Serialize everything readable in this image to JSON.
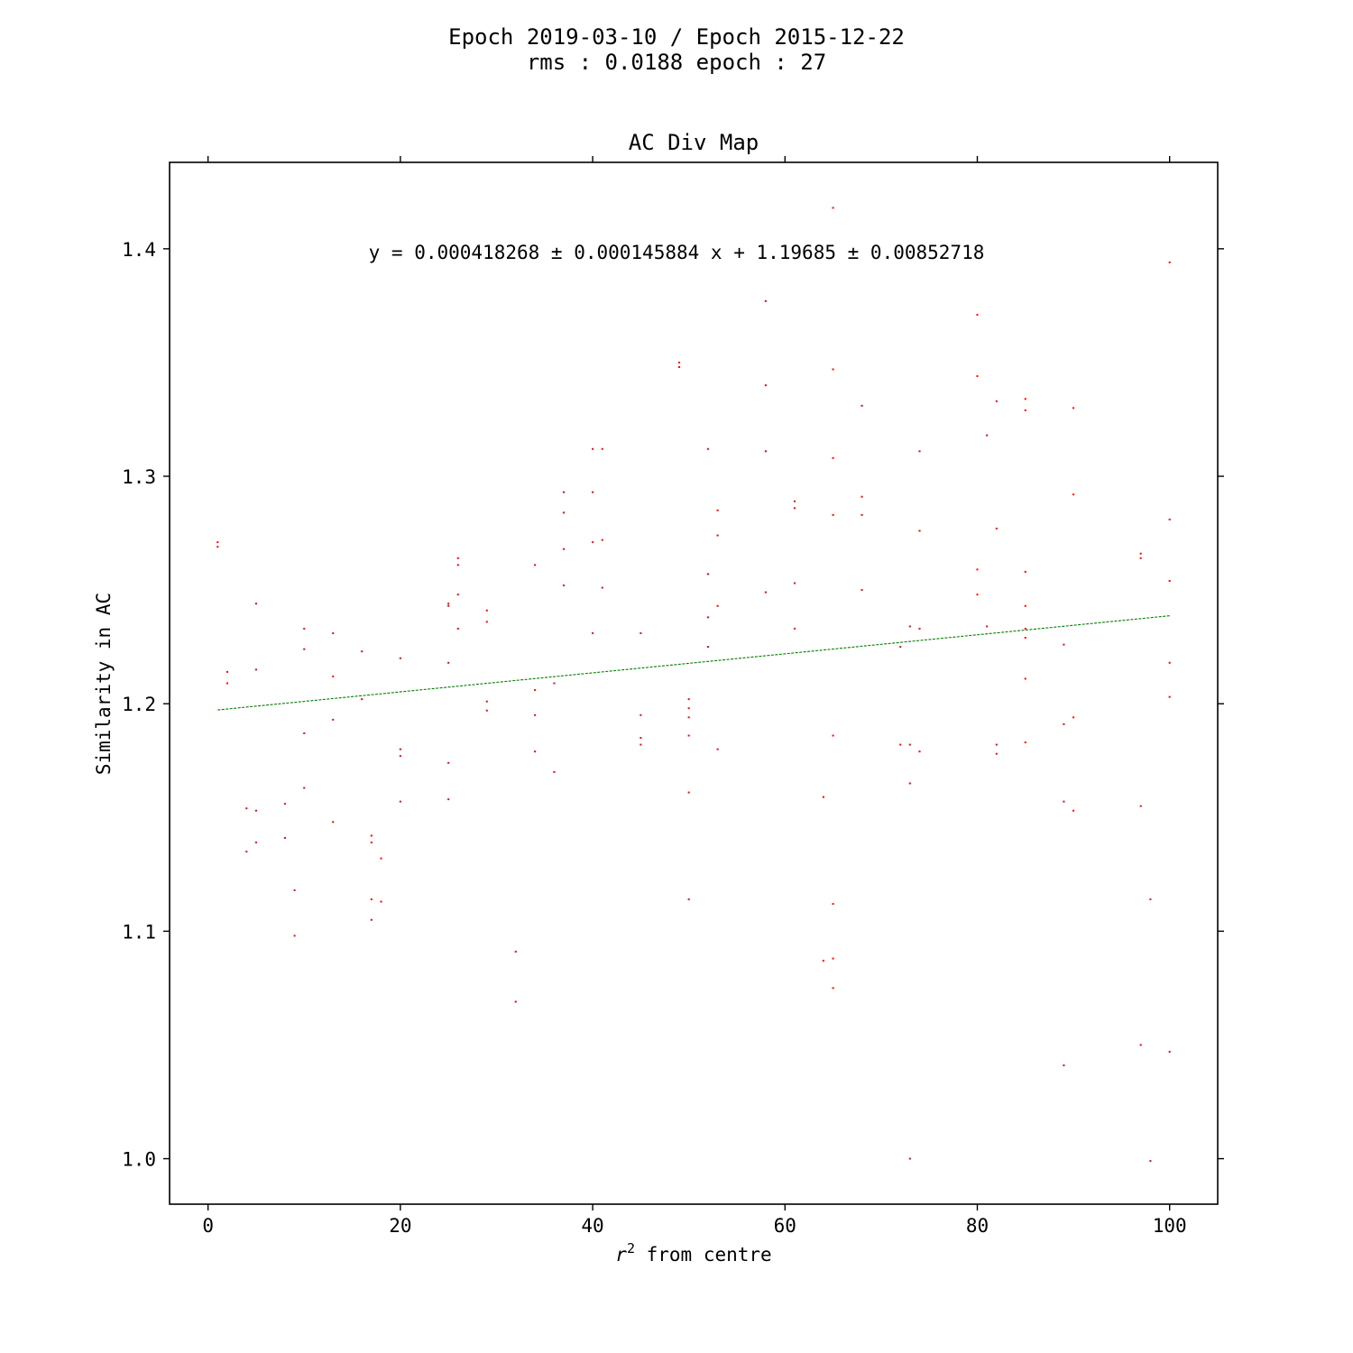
{
  "figure": {
    "suptitle_line1": "Epoch 2019-03-10 / Epoch 2015-12-22",
    "suptitle_line2": "rms : 0.0188 epoch : 27"
  },
  "chart_data": {
    "type": "scatter",
    "title": "AC Div Map",
    "xlabel_main": "r",
    "xlabel_sup": "2",
    "xlabel_rest": " from centre",
    "ylabel": "Similarity in AC",
    "xlim": [
      -4,
      105
    ],
    "ylim": [
      0.98,
      1.438
    ],
    "xticks": [
      0,
      20,
      40,
      60,
      80,
      100
    ],
    "yticks": [
      1.0,
      1.1,
      1.2,
      1.3,
      1.4
    ],
    "xtick_labels": [
      "0",
      "20",
      "40",
      "60",
      "80",
      "100"
    ],
    "ytick_labels": [
      "1.0",
      "1.1",
      "1.2",
      "1.3",
      "1.4"
    ],
    "annotation": "y = 0.000418268 ± 0.000145884 x + 1.19685 ± 0.00852718",
    "fit": {
      "slope": 0.000418268,
      "intercept": 1.19685,
      "x_range": [
        1,
        100
      ],
      "color": "#008000"
    },
    "point_color": "#ff0000",
    "series": [
      {
        "points": [
          [
            1,
            1.271
          ],
          [
            1,
            1.269
          ],
          [
            2,
            1.214
          ],
          [
            2,
            1.209
          ],
          [
            4,
            1.154
          ],
          [
            4,
            1.135
          ],
          [
            5,
            1.244
          ],
          [
            5,
            1.215
          ],
          [
            5,
            1.153
          ],
          [
            5,
            1.139
          ],
          [
            8,
            1.156
          ],
          [
            8,
            1.141
          ],
          [
            9,
            1.118
          ],
          [
            9,
            1.098
          ],
          [
            10,
            1.233
          ],
          [
            10,
            1.224
          ],
          [
            10,
            1.187
          ],
          [
            10,
            1.163
          ],
          [
            13,
            1.231
          ],
          [
            13,
            1.212
          ],
          [
            13,
            1.193
          ],
          [
            13,
            1.148
          ],
          [
            16,
            1.223
          ],
          [
            16,
            1.202
          ],
          [
            17,
            1.142
          ],
          [
            17,
            1.139
          ],
          [
            17,
            1.114
          ],
          [
            17,
            1.105
          ],
          [
            18,
            1.132
          ],
          [
            18,
            1.113
          ],
          [
            20,
            1.22
          ],
          [
            20,
            1.18
          ],
          [
            20,
            1.177
          ],
          [
            20,
            1.157
          ],
          [
            25,
            1.244
          ],
          [
            25,
            1.243
          ],
          [
            25,
            1.218
          ],
          [
            25,
            1.174
          ],
          [
            25,
            1.158
          ],
          [
            26,
            1.264
          ],
          [
            26,
            1.261
          ],
          [
            26,
            1.248
          ],
          [
            26,
            1.233
          ],
          [
            29,
            1.241
          ],
          [
            29,
            1.236
          ],
          [
            29,
            1.201
          ],
          [
            29,
            1.197
          ],
          [
            32,
            1.091
          ],
          [
            32,
            1.069
          ],
          [
            34,
            1.261
          ],
          [
            34,
            1.206
          ],
          [
            34,
            1.195
          ],
          [
            34,
            1.179
          ],
          [
            36,
            1.209
          ],
          [
            36,
            1.17
          ],
          [
            37,
            1.293
          ],
          [
            37,
            1.284
          ],
          [
            37,
            1.268
          ],
          [
            37,
            1.252
          ],
          [
            40,
            1.312
          ],
          [
            40,
            1.293
          ],
          [
            40,
            1.271
          ],
          [
            40,
            1.231
          ],
          [
            41,
            1.312
          ],
          [
            41,
            1.272
          ],
          [
            41,
            1.251
          ],
          [
            45,
            1.231
          ],
          [
            45,
            1.195
          ],
          [
            45,
            1.185
          ],
          [
            45,
            1.182
          ],
          [
            49,
            1.35
          ],
          [
            49,
            1.348
          ],
          [
            50,
            1.202
          ],
          [
            50,
            1.198
          ],
          [
            50,
            1.194
          ],
          [
            50,
            1.186
          ],
          [
            50,
            1.161
          ],
          [
            50,
            1.114
          ],
          [
            52,
            1.312
          ],
          [
            52,
            1.257
          ],
          [
            52,
            1.238
          ],
          [
            52,
            1.225
          ],
          [
            53,
            1.285
          ],
          [
            53,
            1.274
          ],
          [
            53,
            1.243
          ],
          [
            53,
            1.18
          ],
          [
            58,
            1.377
          ],
          [
            58,
            1.34
          ],
          [
            58,
            1.311
          ],
          [
            58,
            1.249
          ],
          [
            61,
            1.289
          ],
          [
            61,
            1.286
          ],
          [
            61,
            1.253
          ],
          [
            61,
            1.233
          ],
          [
            64,
            1.159
          ],
          [
            64,
            1.087
          ],
          [
            65,
            1.418
          ],
          [
            65,
            1.347
          ],
          [
            65,
            1.308
          ],
          [
            65,
            1.283
          ],
          [
            65,
            1.186
          ],
          [
            65,
            1.112
          ],
          [
            65,
            1.088
          ],
          [
            65,
            1.075
          ],
          [
            68,
            1.331
          ],
          [
            68,
            1.291
          ],
          [
            68,
            1.283
          ],
          [
            68,
            1.25
          ],
          [
            72,
            1.225
          ],
          [
            72,
            1.182
          ],
          [
            73,
            1.234
          ],
          [
            73,
            1.182
          ],
          [
            73,
            1.165
          ],
          [
            73,
            1.0
          ],
          [
            74,
            1.311
          ],
          [
            74,
            1.276
          ],
          [
            74,
            1.233
          ],
          [
            74,
            1.179
          ],
          [
            80,
            1.371
          ],
          [
            80,
            1.344
          ],
          [
            80,
            1.259
          ],
          [
            80,
            1.248
          ],
          [
            81,
            1.318
          ],
          [
            81,
            1.234
          ],
          [
            82,
            1.333
          ],
          [
            82,
            1.277
          ],
          [
            82,
            1.182
          ],
          [
            82,
            1.178
          ],
          [
            85,
            1.334
          ],
          [
            85,
            1.329
          ],
          [
            85,
            1.258
          ],
          [
            85,
            1.243
          ],
          [
            85,
            1.233
          ],
          [
            85,
            1.229
          ],
          [
            85,
            1.211
          ],
          [
            85,
            1.183
          ],
          [
            89,
            1.226
          ],
          [
            89,
            1.191
          ],
          [
            89,
            1.157
          ],
          [
            89,
            1.041
          ],
          [
            90,
            1.33
          ],
          [
            90,
            1.292
          ],
          [
            90,
            1.194
          ],
          [
            90,
            1.153
          ],
          [
            97,
            1.266
          ],
          [
            97,
            1.264
          ],
          [
            97,
            1.155
          ],
          [
            97,
            1.05
          ],
          [
            98,
            1.114
          ],
          [
            98,
            0.999
          ],
          [
            100,
            1.394
          ],
          [
            100,
            1.281
          ],
          [
            100,
            1.254
          ],
          [
            100,
            1.218
          ],
          [
            100,
            1.203
          ],
          [
            100,
            1.047
          ]
        ]
      }
    ]
  }
}
